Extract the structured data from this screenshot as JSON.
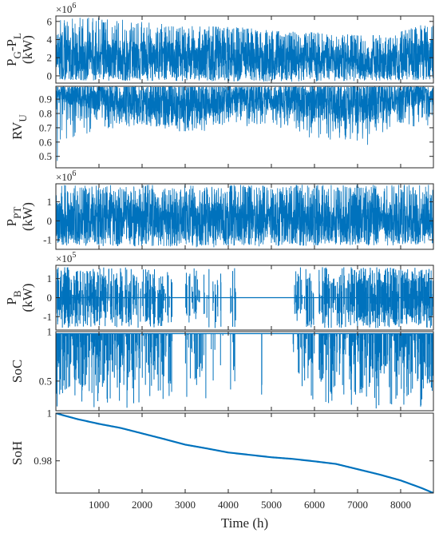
{
  "colors": {
    "series": "#0072BD",
    "axis": "#262626",
    "background": "#ffffff"
  },
  "chart_data": {
    "type": "line",
    "layout": "6 vertically stacked panels with shared x-axis",
    "xlabel": "Time (h)",
    "xlim": [
      0,
      8760
    ],
    "xticks": [
      1000,
      2000,
      3000,
      4000,
      5000,
      6000,
      7000,
      8000
    ],
    "xtick_labels": [
      "1000",
      "2000",
      "3000",
      "4000",
      "5000",
      "6000",
      "7000",
      "8000"
    ],
    "panels": [
      {
        "id": "pg_pl",
        "ylabel_main": "P",
        "ylabel_sub1": "G",
        "ylabel_mid": "-P",
        "ylabel_sub2": "L",
        "ylabel_unit": "(kW)",
        "exponent": "6",
        "ylim": [
          -0.8,
          6.6
        ],
        "yticks": [
          0,
          2,
          4,
          6
        ],
        "ytick_labels": [
          "0",
          "2",
          "4",
          "6"
        ],
        "series": {
          "style": "dense-noise",
          "envelope_upper": [
            [
              0,
              6.3
            ],
            [
              1000,
              6.5
            ],
            [
              1500,
              6.3
            ],
            [
              2000,
              6.0
            ],
            [
              3000,
              5.5
            ],
            [
              4000,
              5.5
            ],
            [
              5000,
              5.0
            ],
            [
              6000,
              4.8
            ],
            [
              7000,
              4.5
            ],
            [
              7800,
              4.5
            ],
            [
              8300,
              5.5
            ],
            [
              8760,
              6.0
            ]
          ],
          "envelope_lower": [
            [
              0,
              -0.5
            ],
            [
              4000,
              -0.6
            ],
            [
              5000,
              -0.7
            ],
            [
              6000,
              -0.6
            ],
            [
              7000,
              -0.6
            ],
            [
              8000,
              -0.5
            ],
            [
              8760,
              -0.5
            ]
          ],
          "core_upper": [
            [
              0,
              4.0
            ],
            [
              4000,
              3.8
            ],
            [
              6000,
              3.5
            ],
            [
              7500,
              3.0
            ],
            [
              8200,
              4.0
            ],
            [
              8760,
              4.5
            ]
          ],
          "core_lower": [
            [
              0,
              0.0
            ],
            [
              8760,
              0.0
            ]
          ]
        }
      },
      {
        "id": "rv_u",
        "ylabel_main": "RV",
        "ylabel_sub1": "U",
        "ylim": [
          0.42,
          0.99
        ],
        "yticks": [
          0.5,
          0.6,
          0.7,
          0.8,
          0.9
        ],
        "ytick_labels": [
          "0.5",
          "0.6",
          "0.7",
          "0.8",
          "0.9"
        ],
        "series": {
          "style": "dense-noise",
          "envelope_upper": [
            [
              0,
              0.985
            ],
            [
              8760,
              0.985
            ]
          ],
          "envelope_lower": [
            [
              0,
              0.44
            ],
            [
              300,
              0.62
            ],
            [
              1000,
              0.68
            ],
            [
              2000,
              0.72
            ],
            [
              3000,
              0.66
            ],
            [
              4000,
              0.7
            ],
            [
              5000,
              0.72
            ],
            [
              6000,
              0.62
            ],
            [
              7000,
              0.58
            ],
            [
              7200,
              0.56
            ],
            [
              7500,
              0.65
            ],
            [
              8000,
              0.72
            ],
            [
              8500,
              0.7
            ],
            [
              8760,
              0.68
            ]
          ],
          "core_upper": [
            [
              0,
              0.985
            ],
            [
              8760,
              0.985
            ]
          ],
          "core_lower": [
            [
              0,
              0.88
            ],
            [
              1000,
              0.82
            ],
            [
              3000,
              0.74
            ],
            [
              4000,
              0.8
            ],
            [
              5000,
              0.82
            ],
            [
              6000,
              0.76
            ],
            [
              7000,
              0.72
            ],
            [
              7500,
              0.75
            ],
            [
              8000,
              0.82
            ],
            [
              8760,
              0.88
            ]
          ]
        }
      },
      {
        "id": "p_pt",
        "ylabel_main": "P",
        "ylabel_sub1": "PT",
        "ylabel_unit": "(kW)",
        "exponent": "6",
        "ylim": [
          -1.5,
          1.95
        ],
        "yticks": [
          -1,
          0,
          1
        ],
        "ytick_labels": [
          "-1",
          "0",
          "1"
        ],
        "series": {
          "style": "dense-noise",
          "envelope_upper": [
            [
              0,
              1.9
            ],
            [
              8760,
              1.9
            ]
          ],
          "envelope_lower": [
            [
              0,
              -1.3
            ],
            [
              3000,
              -1.4
            ],
            [
              5000,
              -1.4
            ],
            [
              6000,
              -1.3
            ],
            [
              8000,
              -1.3
            ],
            [
              8760,
              -1.2
            ]
          ],
          "core_upper": [
            [
              0,
              1.0
            ],
            [
              8760,
              1.0
            ]
          ],
          "core_lower": [
            [
              0,
              -1.0
            ],
            [
              8760,
              -1.0
            ]
          ]
        }
      },
      {
        "id": "p_b",
        "ylabel_main": "P",
        "ylabel_sub1": "B",
        "ylabel_unit": "(kW)",
        "exponent": "5",
        "ylim": [
          -1.7,
          1.7
        ],
        "yticks": [
          -1,
          0,
          1
        ],
        "ytick_labels": [
          "-1",
          "0",
          "1"
        ],
        "series": {
          "style": "sparse-spikes",
          "baseline": 0,
          "spike_max": 1.6,
          "spike_min": -1.6,
          "active_ranges": [
            [
              0,
              2700
            ],
            [
              3000,
              3900
            ],
            [
              4050,
              4200
            ],
            [
              4750,
              4780
            ],
            [
              5500,
              6000
            ],
            [
              6100,
              8760
            ]
          ],
          "density": [
            [
              0,
              1.0
            ],
            [
              1500,
              0.7
            ],
            [
              2700,
              0.5
            ],
            [
              3500,
              0.3
            ],
            [
              5500,
              0.4
            ],
            [
              6200,
              0.7
            ],
            [
              7000,
              0.9
            ],
            [
              8000,
              1.0
            ],
            [
              8760,
              1.0
            ]
          ]
        }
      },
      {
        "id": "soc",
        "ylabel_main": "SoC",
        "ylim": [
          0.2,
          1.0
        ],
        "yticks": [
          0.5,
          1
        ],
        "ytick_labels": [
          "0.5",
          "1"
        ],
        "series": {
          "style": "downward-spikes",
          "baseline": 0.98,
          "spike_min": 0.22,
          "active_ranges": [
            [
              0,
              2700
            ],
            [
              3000,
              3900
            ],
            [
              4050,
              4200
            ],
            [
              4750,
              4780
            ],
            [
              5500,
              6000
            ],
            [
              6100,
              8760
            ]
          ],
          "density": [
            [
              0,
              1.0
            ],
            [
              1500,
              0.7
            ],
            [
              2700,
              0.5
            ],
            [
              3500,
              0.3
            ],
            [
              5500,
              0.4
            ],
            [
              6200,
              0.7
            ],
            [
              7000,
              0.9
            ],
            [
              8000,
              1.0
            ],
            [
              8760,
              1.0
            ]
          ]
        }
      },
      {
        "id": "soh",
        "ylabel_main": "SoH",
        "ylim": [
          0.9665,
          1.0
        ],
        "yticks": [
          0.98,
          1
        ],
        "ytick_labels": [
          "0.98",
          "1"
        ],
        "series": {
          "style": "smooth-line",
          "points": [
            [
              0,
              1.0
            ],
            [
              150,
              0.9992
            ],
            [
              500,
              0.9975
            ],
            [
              1000,
              0.9955
            ],
            [
              1500,
              0.9938
            ],
            [
              2000,
              0.9915
            ],
            [
              2500,
              0.9892
            ],
            [
              3000,
              0.9868
            ],
            [
              3500,
              0.9852
            ],
            [
              4000,
              0.9835
            ],
            [
              4500,
              0.9825
            ],
            [
              5000,
              0.9815
            ],
            [
              5500,
              0.9808
            ],
            [
              6000,
              0.9798
            ],
            [
              6500,
              0.9787
            ],
            [
              7000,
              0.9765
            ],
            [
              7500,
              0.9743
            ],
            [
              8000,
              0.9718
            ],
            [
              8500,
              0.9685
            ],
            [
              8760,
              0.9665
            ]
          ]
        }
      }
    ]
  }
}
